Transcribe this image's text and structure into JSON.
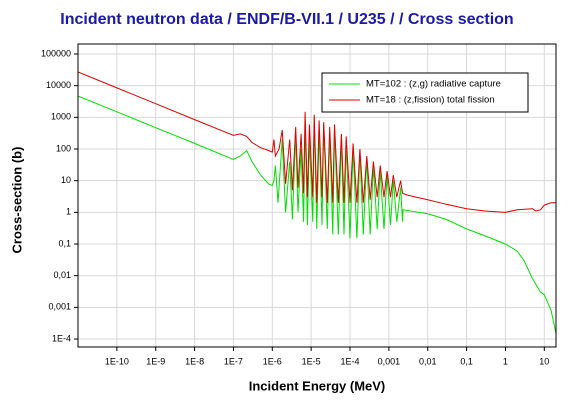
{
  "chart_data": {
    "type": "line",
    "title": "Incident neutron data / ENDF/B-VII.1 / U235 / / Cross section",
    "x_label": "Incident Energy (MeV)",
    "y_label": "Cross-section (b)",
    "xscale": "log",
    "yscale": "log",
    "grid": true,
    "legend": "upper right",
    "xlim": [
      1e-11,
      20
    ],
    "ylim": [
      5.6e-05,
      207000
    ],
    "xticks": [
      {
        "value": 1e-10,
        "label": "1E-10"
      },
      {
        "value": 1e-09,
        "label": "1E-9"
      },
      {
        "value": 1e-08,
        "label": "1E-8"
      },
      {
        "value": 1e-07,
        "label": "1E-7"
      },
      {
        "value": 1e-06,
        "label": "1E-6"
      },
      {
        "value": 1e-05,
        "label": "1E-5"
      },
      {
        "value": 0.0001,
        "label": "1E-4"
      },
      {
        "value": 0.001,
        "label": "0,001"
      },
      {
        "value": 0.01,
        "label": "0,01"
      },
      {
        "value": 0.1,
        "label": "0,1"
      },
      1,
      10
    ],
    "yticks": [
      {
        "value": 0.0001,
        "label": "1E-4"
      },
      {
        "value": 0.001,
        "label": "0,001"
      },
      {
        "value": 0.01,
        "label": "0,01"
      },
      {
        "value": 0.1,
        "label": "0,1"
      },
      1,
      10,
      100,
      1000,
      10000,
      100000
    ],
    "series": [
      {
        "name": "MT=102 : (z,g) radiative capture",
        "color": "#00e000",
        "x": [
          1e-11,
          1e-10,
          1e-09,
          1e-08,
          1e-07,
          1.5e-07,
          2.2e-07,
          3e-07,
          5e-07,
          8e-07,
          1e-06,
          1.1e-06,
          1.2e-06,
          1.4e-06,
          1.8e-06,
          2.2e-06,
          2.8e-06,
          3.3e-06,
          4e-06,
          4.6e-06,
          5.5e-06,
          6.4e-06,
          7e-06,
          8e-06,
          9e-06,
          1.1e-05,
          1.2e-05,
          1.4e-05,
          1.6e-05,
          1.9e-05,
          2.1e-05,
          2.6e-05,
          3e-05,
          3.6e-05,
          4e-05,
          5e-05,
          6e-05,
          7e-05,
          8e-05,
          0.0001,
          0.00012,
          0.00015,
          0.00018,
          0.00022,
          0.00027,
          0.00033,
          0.0004,
          0.0005,
          0.0006,
          0.00075,
          0.0009,
          0.0011,
          0.0013,
          0.0016,
          0.002,
          0.00225,
          0.0023,
          0.01,
          0.03,
          0.1,
          0.3,
          1,
          2,
          3,
          5,
          8,
          10,
          15,
          20
        ],
        "values": [
          4700,
          1500,
          470,
          150,
          47,
          60,
          90,
          40,
          15,
          8,
          7,
          10,
          30,
          2,
          200,
          1,
          40,
          0.6,
          300,
          1,
          100,
          0.5,
          800,
          0.4,
          200,
          0.5,
          1000,
          0.3,
          400,
          0.4,
          600,
          0.3,
          300,
          0.2,
          500,
          0.2,
          200,
          0.2,
          150,
          0.15,
          100,
          0.15,
          80,
          0.2,
          50,
          0.2,
          30,
          0.3,
          20,
          0.3,
          15,
          0.4,
          10,
          0.5,
          6,
          0.5,
          1.2,
          0.9,
          0.6,
          0.3,
          0.18,
          0.1,
          0.06,
          0.03,
          0.008,
          0.003,
          0.0025,
          0.0008,
          0.00015
        ]
      },
      {
        "name": "MT=18 : (z,fission) total fission",
        "color": "#e00000",
        "x": [
          1e-11,
          1e-10,
          1e-09,
          1e-08,
          1e-07,
          1.5e-07,
          2.2e-07,
          3e-07,
          5e-07,
          8e-07,
          1e-06,
          1.1e-06,
          1.2e-06,
          1.5e-06,
          1.8e-06,
          2.2e-06,
          2.8e-06,
          3.3e-06,
          4e-06,
          4.6e-06,
          5.5e-06,
          6.4e-06,
          7e-06,
          8e-06,
          9e-06,
          1.1e-05,
          1.2e-05,
          1.4e-05,
          1.6e-05,
          1.9e-05,
          2.1e-05,
          2.6e-05,
          3e-05,
          3.6e-05,
          4e-05,
          5e-05,
          6e-05,
          7e-05,
          8e-05,
          0.0001,
          0.00012,
          0.00015,
          0.00018,
          0.00022,
          0.00027,
          0.00033,
          0.0004,
          0.0005,
          0.0006,
          0.00075,
          0.0009,
          0.0011,
          0.0013,
          0.0016,
          0.002,
          0.00225,
          0.003,
          0.01,
          0.03,
          0.1,
          0.3,
          1,
          2,
          5,
          6,
          8,
          10,
          15,
          20
        ],
        "values": [
          27000,
          8500,
          2700,
          850,
          270,
          300,
          250,
          160,
          110,
          90,
          80,
          200,
          60,
          100,
          400,
          8,
          200,
          5,
          500,
          6,
          300,
          4,
          1500,
          3,
          600,
          3,
          1200,
          2,
          800,
          3,
          700,
          2,
          500,
          2,
          600,
          2,
          300,
          2,
          250,
          2,
          150,
          2,
          100,
          2,
          60,
          2.5,
          40,
          3,
          30,
          3,
          20,
          3,
          15,
          3,
          10,
          4,
          3.5,
          2.5,
          1.8,
          1.3,
          1.1,
          1.0,
          1.2,
          1.3,
          1.1,
          1.2,
          1.7,
          2.0,
          2.0
        ]
      }
    ]
  }
}
